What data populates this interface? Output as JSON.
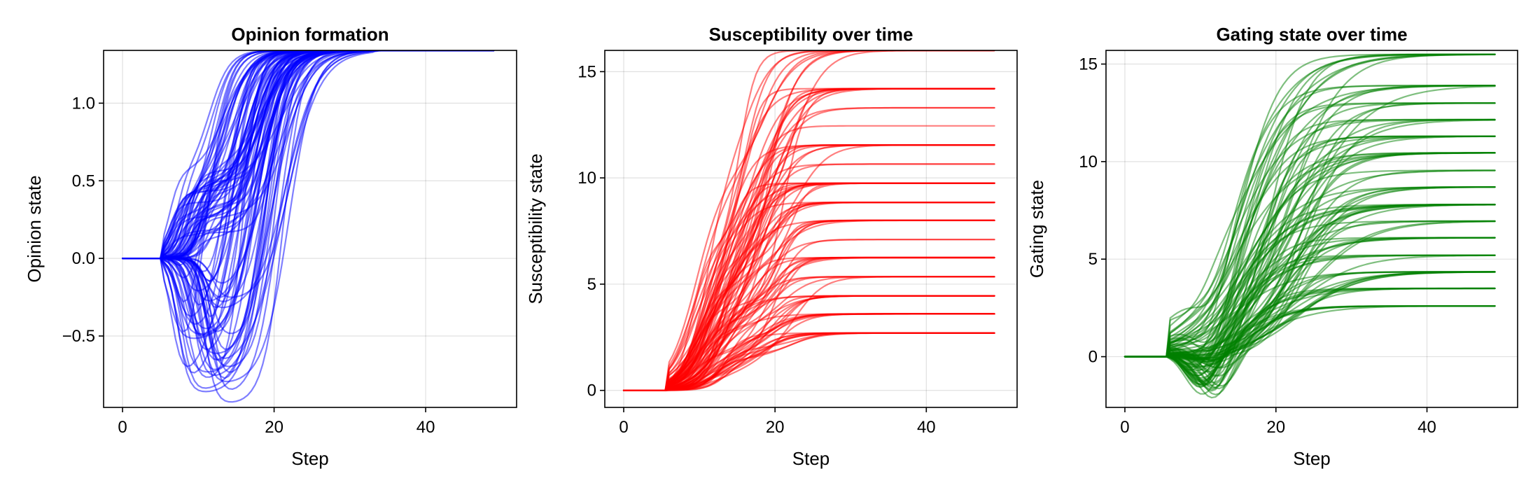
{
  "figure": {
    "panels": [
      {
        "title": "Opinion formation",
        "xlabel": "Step",
        "ylabel": "Opinion state",
        "color": "#0000ff",
        "xticks": [
          0,
          20,
          40
        ],
        "xtick_labels": [
          "0",
          "20",
          "40"
        ],
        "yticks": [
          -0.5,
          0.0,
          0.5,
          1.0
        ],
        "ytick_labels": [
          "−0.5",
          "0.0",
          "0.5",
          "1.0"
        ]
      },
      {
        "title": "Susceptibility over time",
        "xlabel": "Step",
        "ylabel": "Susceptibility state",
        "color": "#ff0000",
        "xticks": [
          0,
          20,
          40
        ],
        "xtick_labels": [
          "0",
          "20",
          "40"
        ],
        "yticks": [
          0,
          5,
          10,
          15
        ],
        "ytick_labels": [
          "0",
          "5",
          "10",
          "15"
        ]
      },
      {
        "title": "Gating state over time",
        "xlabel": "Step",
        "ylabel": "Gating state",
        "color": "#008000",
        "xticks": [
          0,
          20,
          40
        ],
        "xtick_labels": [
          "0",
          "20",
          "40"
        ],
        "yticks": [
          0,
          5,
          10,
          15
        ],
        "ytick_labels": [
          "0",
          "5",
          "10",
          "15"
        ]
      }
    ]
  },
  "chart_data": [
    {
      "type": "line",
      "title": "Opinion formation",
      "xlabel": "Step",
      "ylabel": "Opinion state",
      "xlim": [
        -2.5,
        52
      ],
      "ylim": [
        -0.96,
        1.34
      ],
      "grid": true,
      "color": "#0000ff",
      "series_count": 100,
      "x_range": [
        0,
        49
      ],
      "initial_value": 0.0,
      "final_value": 1.34,
      "dip_range": [
        -0.95,
        0.6
      ],
      "rise_step_range": [
        7,
        25
      ]
    },
    {
      "type": "line",
      "title": "Susceptibility over time",
      "xlabel": "Step",
      "ylabel": "Susceptibility state",
      "xlim": [
        -2.5,
        52
      ],
      "ylim": [
        -0.8,
        16.0
      ],
      "grid": true,
      "color": "#ff0000",
      "series_count": 100,
      "x_range": [
        0,
        49
      ],
      "initial_value": 0.0,
      "final_values": [
        2.7,
        3.6,
        4.45,
        5.35,
        6.25,
        7.1,
        8.0,
        8.85,
        9.75,
        10.65,
        11.55,
        12.45,
        13.3,
        14.2,
        16.0
      ],
      "rise_step_range": [
        6,
        28
      ]
    },
    {
      "type": "line",
      "title": "Gating state over time",
      "xlabel": "Step",
      "ylabel": "Gating state",
      "xlim": [
        -2.5,
        52
      ],
      "ylim": [
        -2.6,
        15.7
      ],
      "grid": true,
      "color": "#008000",
      "series_count": 100,
      "x_range": [
        0,
        49
      ],
      "initial_value": 0.0,
      "min_dip": -2.5,
      "final_values": [
        2.6,
        3.5,
        4.35,
        5.2,
        6.1,
        6.95,
        7.8,
        8.7,
        9.55,
        10.45,
        11.3,
        12.15,
        13.0,
        13.9,
        15.5
      ],
      "rise_step_range": [
        5,
        35
      ]
    }
  ]
}
